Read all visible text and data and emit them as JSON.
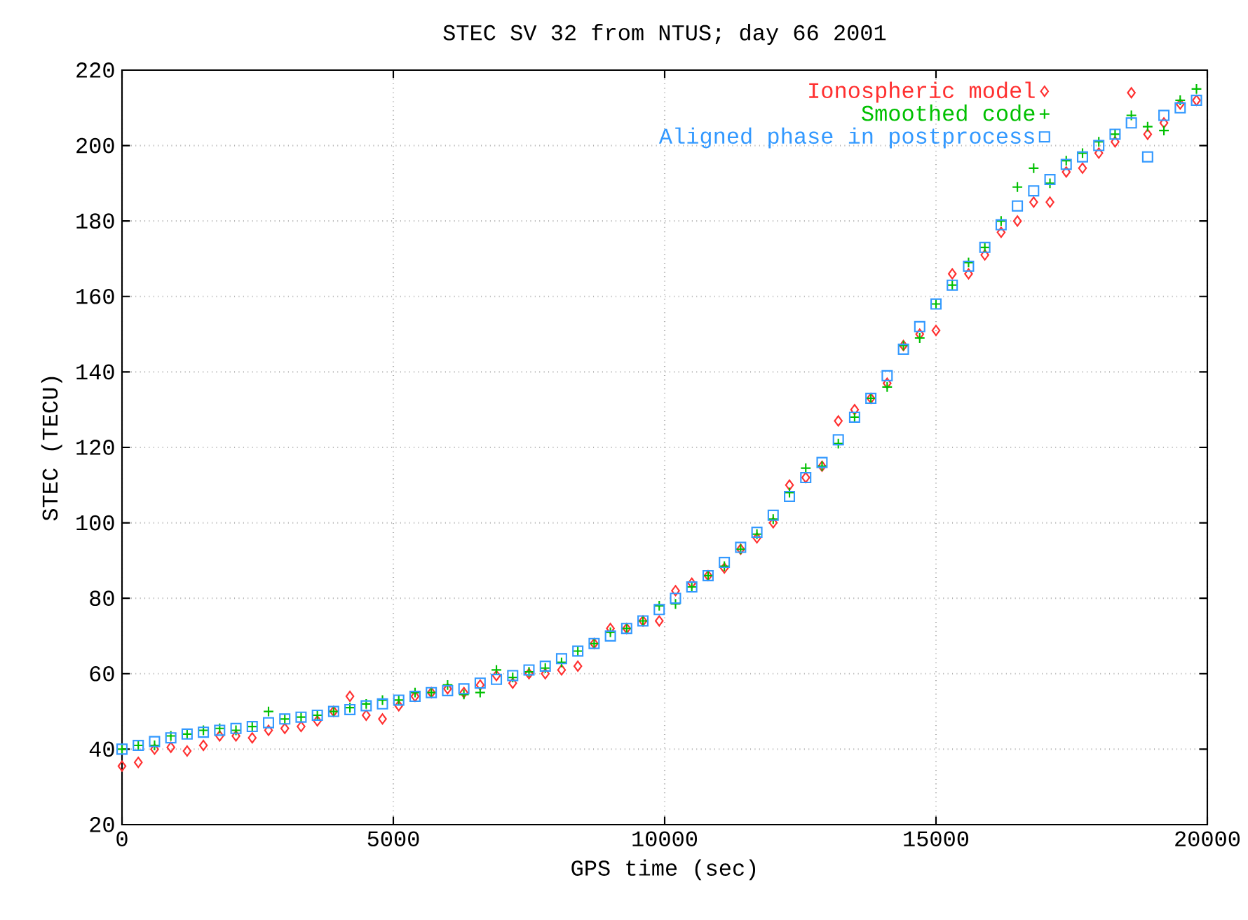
{
  "chart_data": {
    "type": "scatter",
    "title": "STEC SV 32 from NTUS; day 66 2001",
    "xlabel": "GPS time (sec)",
    "ylabel": "STEC (TECU)",
    "x": [
      0,
      300,
      600,
      900,
      1200,
      1500,
      1800,
      2100,
      2400,
      2700,
      3000,
      3300,
      3600,
      3900,
      4200,
      4500,
      4800,
      5100,
      5400,
      5700,
      6000,
      6300,
      6600,
      6900,
      7200,
      7500,
      7800,
      8100,
      8400,
      8700,
      9000,
      9300,
      9600,
      9900,
      10200,
      10500,
      10800,
      11100,
      11400,
      11700,
      12000,
      12300,
      12600,
      12900,
      13200,
      13500,
      13800,
      14100,
      14400,
      14700,
      15000,
      15300,
      15600,
      15900,
      16200,
      16500,
      16800,
      17100,
      17400,
      17700,
      18000,
      18300,
      18600,
      18900,
      19200,
      19500,
      19800
    ],
    "xlim": [
      0,
      20000
    ],
    "ylim": [
      20,
      220
    ],
    "xticks": [
      0,
      5000,
      10000,
      15000,
      20000
    ],
    "yticks": [
      20,
      40,
      60,
      80,
      100,
      120,
      140,
      160,
      180,
      200,
      220
    ],
    "grid": true,
    "legend": "top right",
    "series": [
      {
        "name": "Ionospheric model",
        "color": "#ff3030",
        "marker": "diamond",
        "values": [
          35.5,
          36.5,
          40,
          40.5,
          39.5,
          41,
          43.5,
          43.5,
          43,
          45,
          45.5,
          46,
          47.5,
          50,
          54,
          49,
          48,
          51.5,
          54,
          55,
          56,
          55,
          57,
          59.5,
          57.5,
          60,
          60,
          61,
          62,
          68,
          72,
          72,
          74,
          74,
          82,
          84,
          86,
          88,
          93,
          96,
          100,
          110,
          112,
          115,
          127,
          130,
          133,
          137,
          147,
          150,
          151,
          166,
          166,
          171,
          177,
          180,
          185,
          185,
          193,
          194,
          198,
          201,
          214,
          203,
          206,
          211,
          212
        ]
      },
      {
        "name": "Smoothed code",
        "color": "#00c000",
        "marker": "cross",
        "values": [
          40,
          41,
          41,
          43.5,
          44,
          45,
          45.5,
          45,
          46,
          50,
          48,
          48.5,
          49,
          50,
          51,
          52,
          53,
          53,
          55,
          55,
          57,
          54.5,
          55,
          61,
          59,
          60.5,
          61.5,
          63,
          66,
          68,
          71,
          72,
          74,
          78,
          78.5,
          83,
          86,
          88.5,
          93,
          97,
          101,
          108,
          114.5,
          115,
          121,
          128,
          133,
          136,
          147,
          149,
          158,
          163,
          169,
          173,
          180,
          189,
          194,
          190,
          196,
          198,
          201,
          203,
          208,
          205,
          204,
          212,
          215
        ]
      },
      {
        "name": "Aligned phase in postprocess",
        "color": "#3399ff",
        "marker": "square",
        "values": [
          40,
          41,
          42,
          43,
          44,
          44.5,
          45,
          45.5,
          46,
          47,
          48,
          48.5,
          49,
          50,
          50.5,
          51.5,
          52,
          53,
          54,
          55,
          55.5,
          56,
          57.5,
          58.5,
          59.5,
          61,
          62,
          64,
          66,
          68,
          70,
          72,
          74,
          77,
          80,
          83,
          86,
          89.5,
          93.5,
          97.5,
          102,
          107,
          112,
          116,
          122,
          128,
          133,
          139,
          146,
          152,
          158,
          163,
          168,
          173,
          179,
          184,
          188,
          191,
          195,
          197,
          200,
          203,
          206,
          197,
          208,
          210,
          212
        ]
      }
    ]
  }
}
